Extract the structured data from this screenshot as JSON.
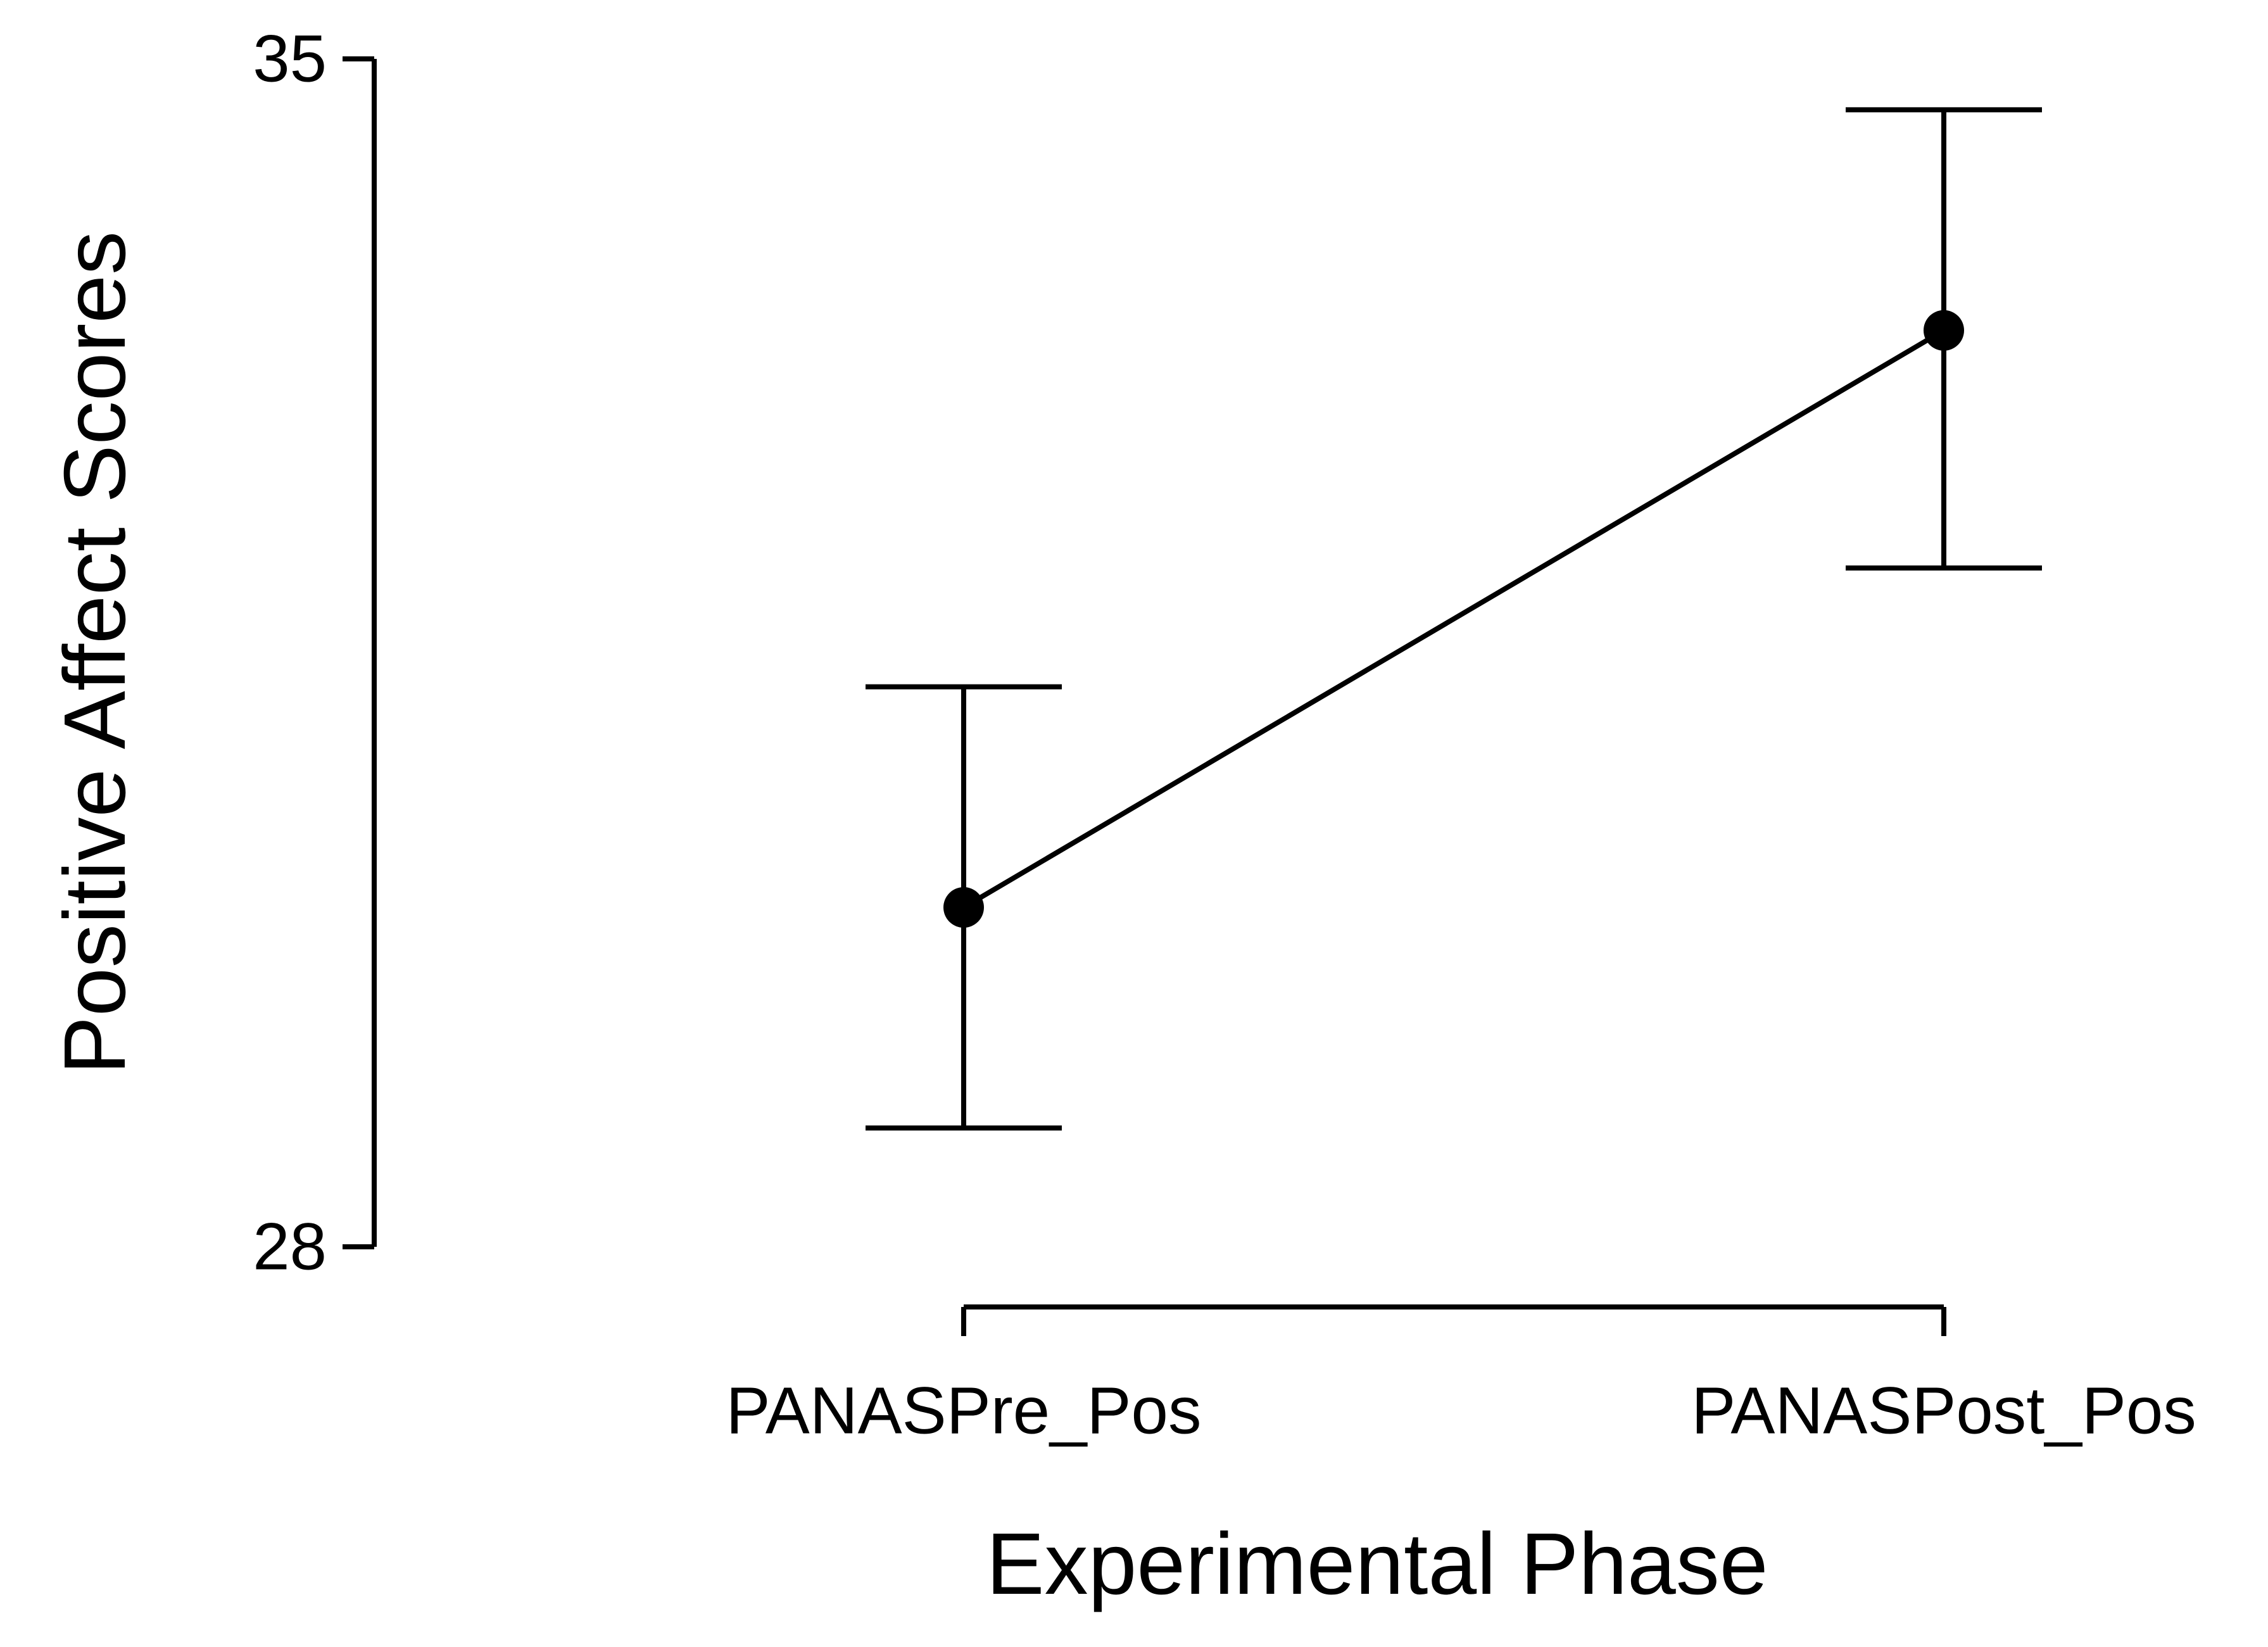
{
  "chart_data": {
    "type": "line",
    "title": "",
    "categories": [
      "PANASPre_Pos",
      "PANASPost_Pos"
    ],
    "values": [
      30.0,
      33.4
    ],
    "error_bars": [
      {
        "low": 28.7,
        "high": 31.3
      },
      {
        "low": 32.0,
        "high": 34.7
      }
    ],
    "xlabel": "Experimental Phase",
    "ylabel": "Positive Affect Scores",
    "ylim": [
      28,
      35
    ],
    "yticks": [
      35,
      28
    ],
    "grid": false,
    "legend": false,
    "marker": "filled-circle",
    "line_color": "#000000",
    "marker_color": "#000000",
    "background": "#ffffff"
  }
}
